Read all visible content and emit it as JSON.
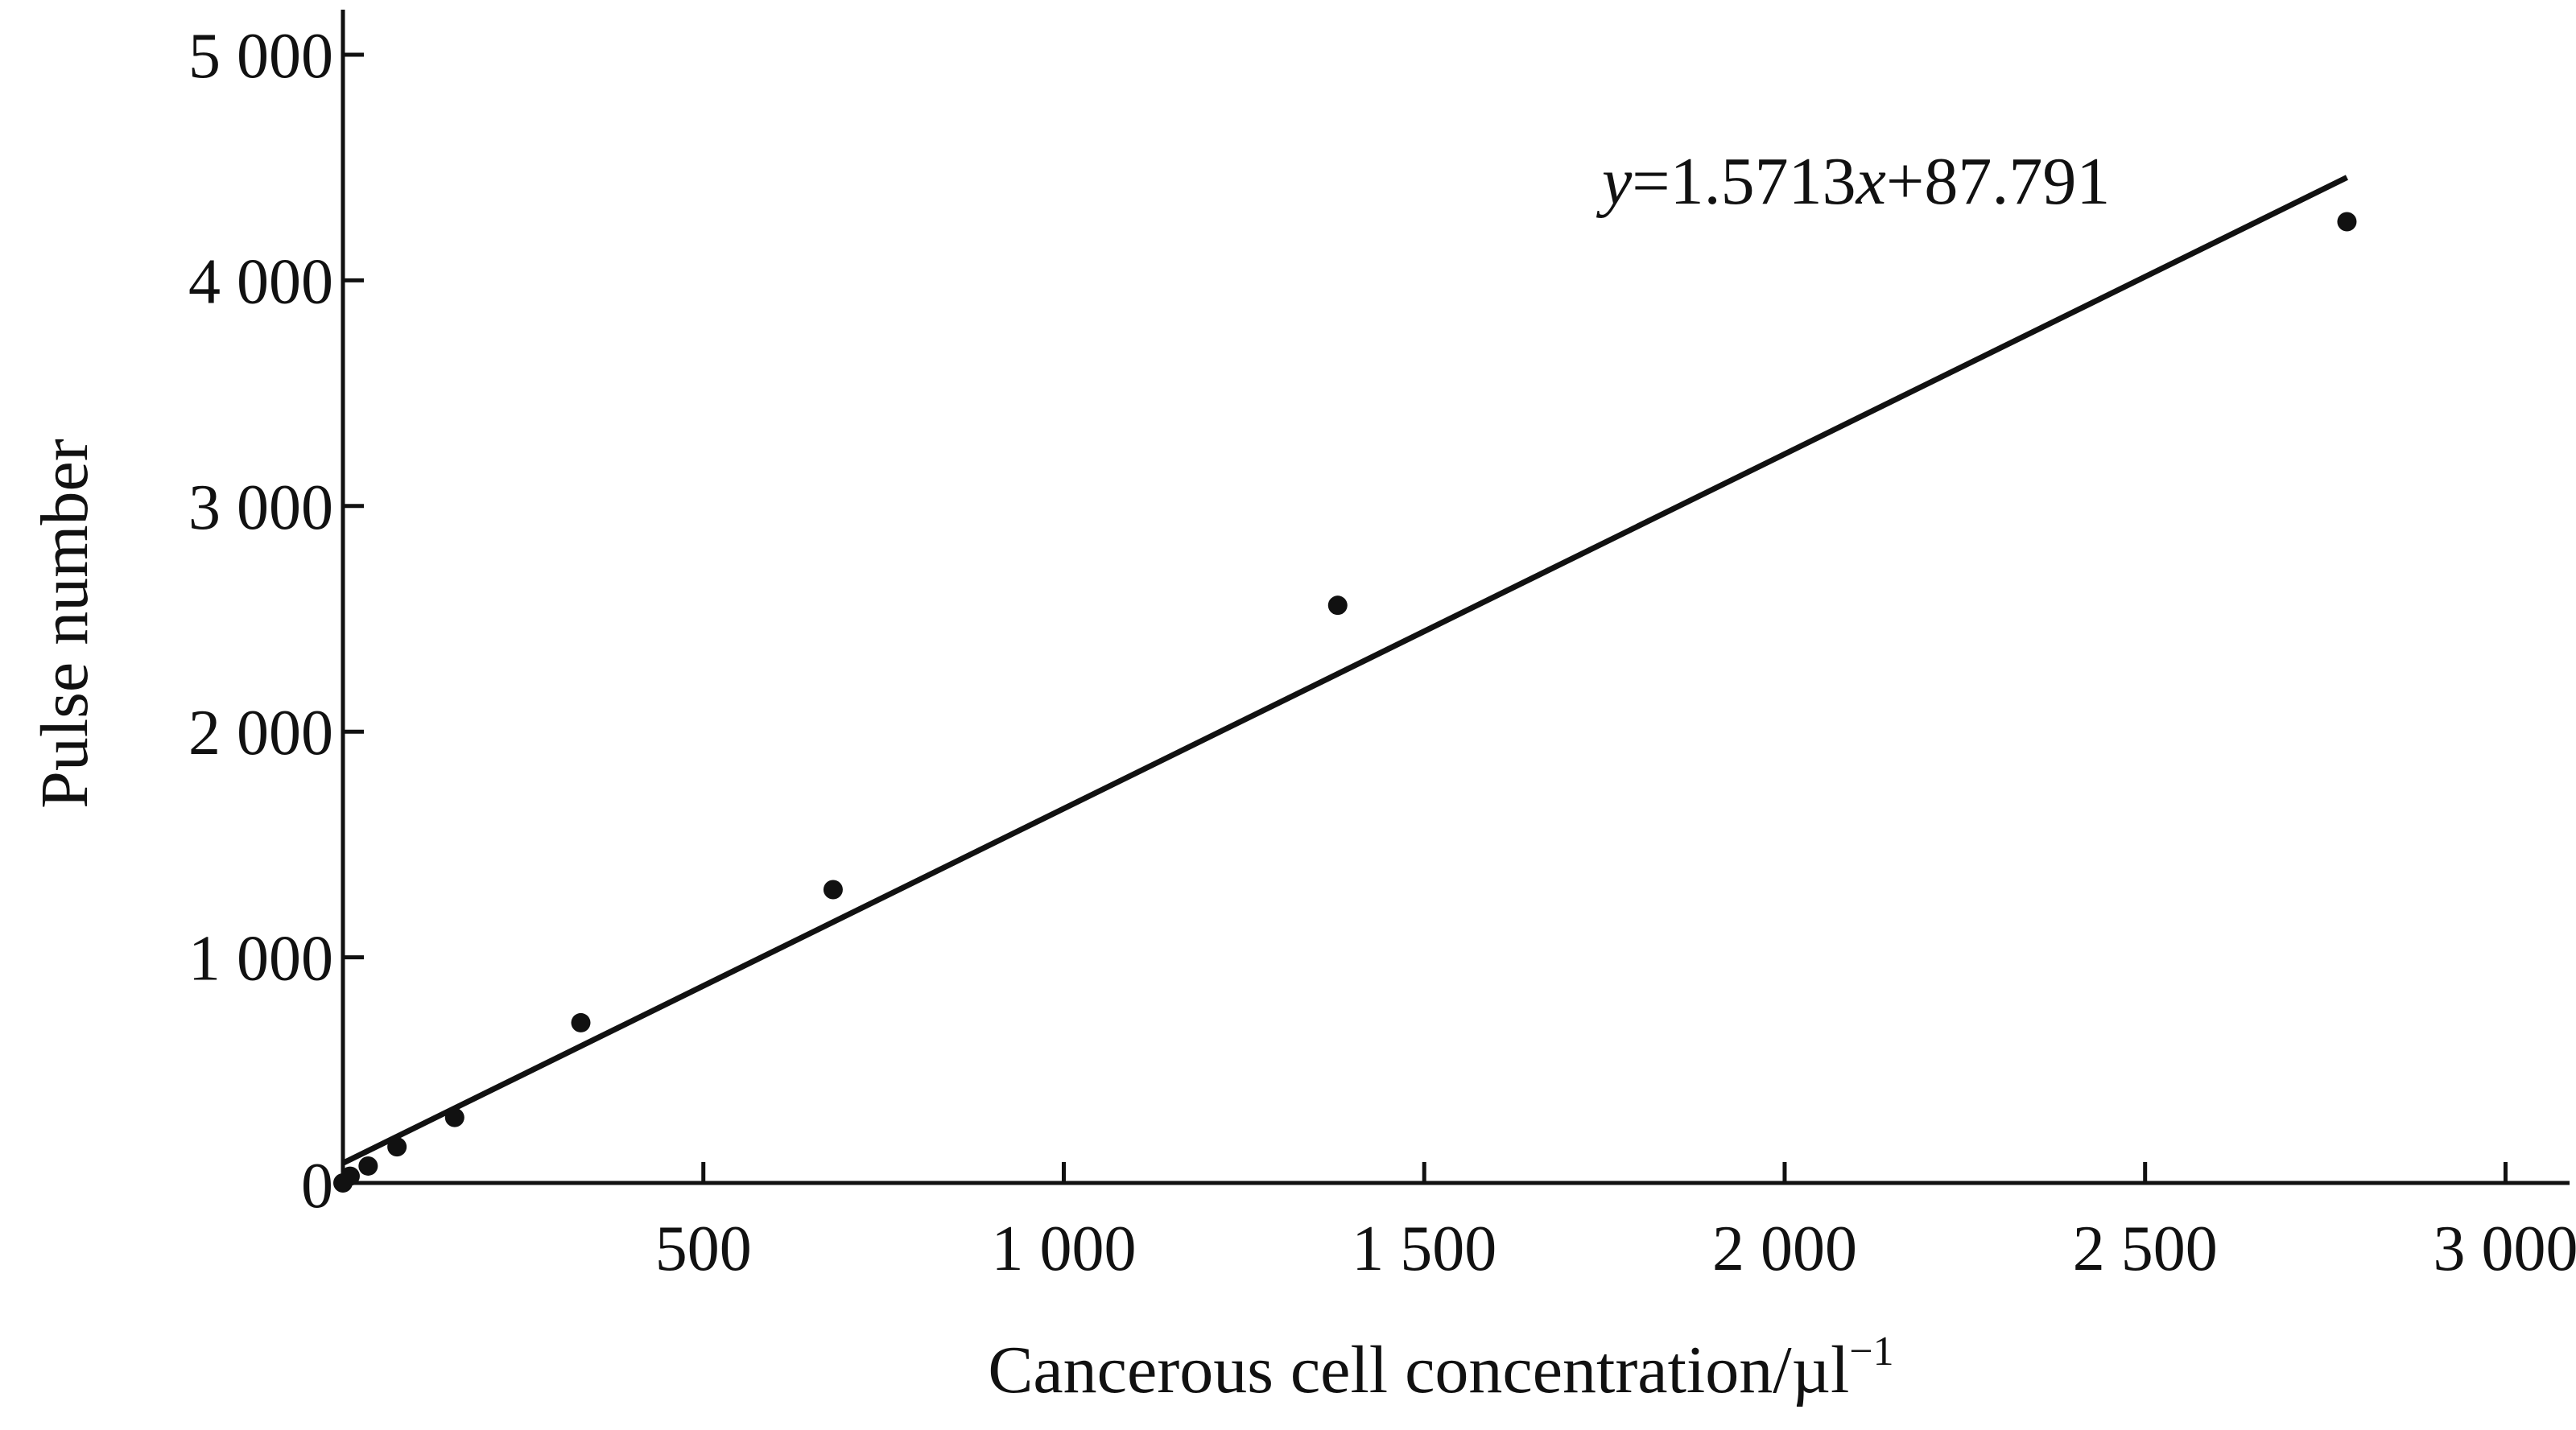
{
  "chart_data": {
    "type": "scatter",
    "title": "",
    "xlabel": "Cancerous cell concentration/µl",
    "xlabel_superscript": "−1",
    "ylabel": "Pulse number",
    "xlim": [
      0,
      3100
    ],
    "ylim": [
      0,
      5000
    ],
    "x_ticks": [
      500,
      1000,
      1500,
      2000,
      2500,
      3000
    ],
    "x_tick_labels": [
      "500",
      "1 000",
      "1 500",
      "2 000",
      "2 500",
      "3 000"
    ],
    "y_ticks": [
      0,
      1000,
      2000,
      3000,
      4000,
      5000
    ],
    "y_tick_labels": [
      "0",
      "1 000",
      "2 000",
      "3 000",
      "4 000",
      "5 000"
    ],
    "grid": false,
    "legend": "none",
    "series": [
      {
        "x": [
          0,
          10,
          35,
          75,
          155,
          330,
          680,
          1380,
          2780
        ],
        "y": [
          0,
          30,
          75,
          160,
          290,
          710,
          1300,
          2560,
          4260
        ]
      }
    ],
    "fit": {
      "slope": 1.5713,
      "intercept": 87.791,
      "x_range": [
        0,
        2780
      ],
      "equation_parts": {
        "y": "y",
        "eq_coef": "=1.5713",
        "x": "x",
        "const": "+87.791"
      }
    },
    "colors": {
      "marks": "#111111",
      "background": "#ffffff"
    }
  }
}
